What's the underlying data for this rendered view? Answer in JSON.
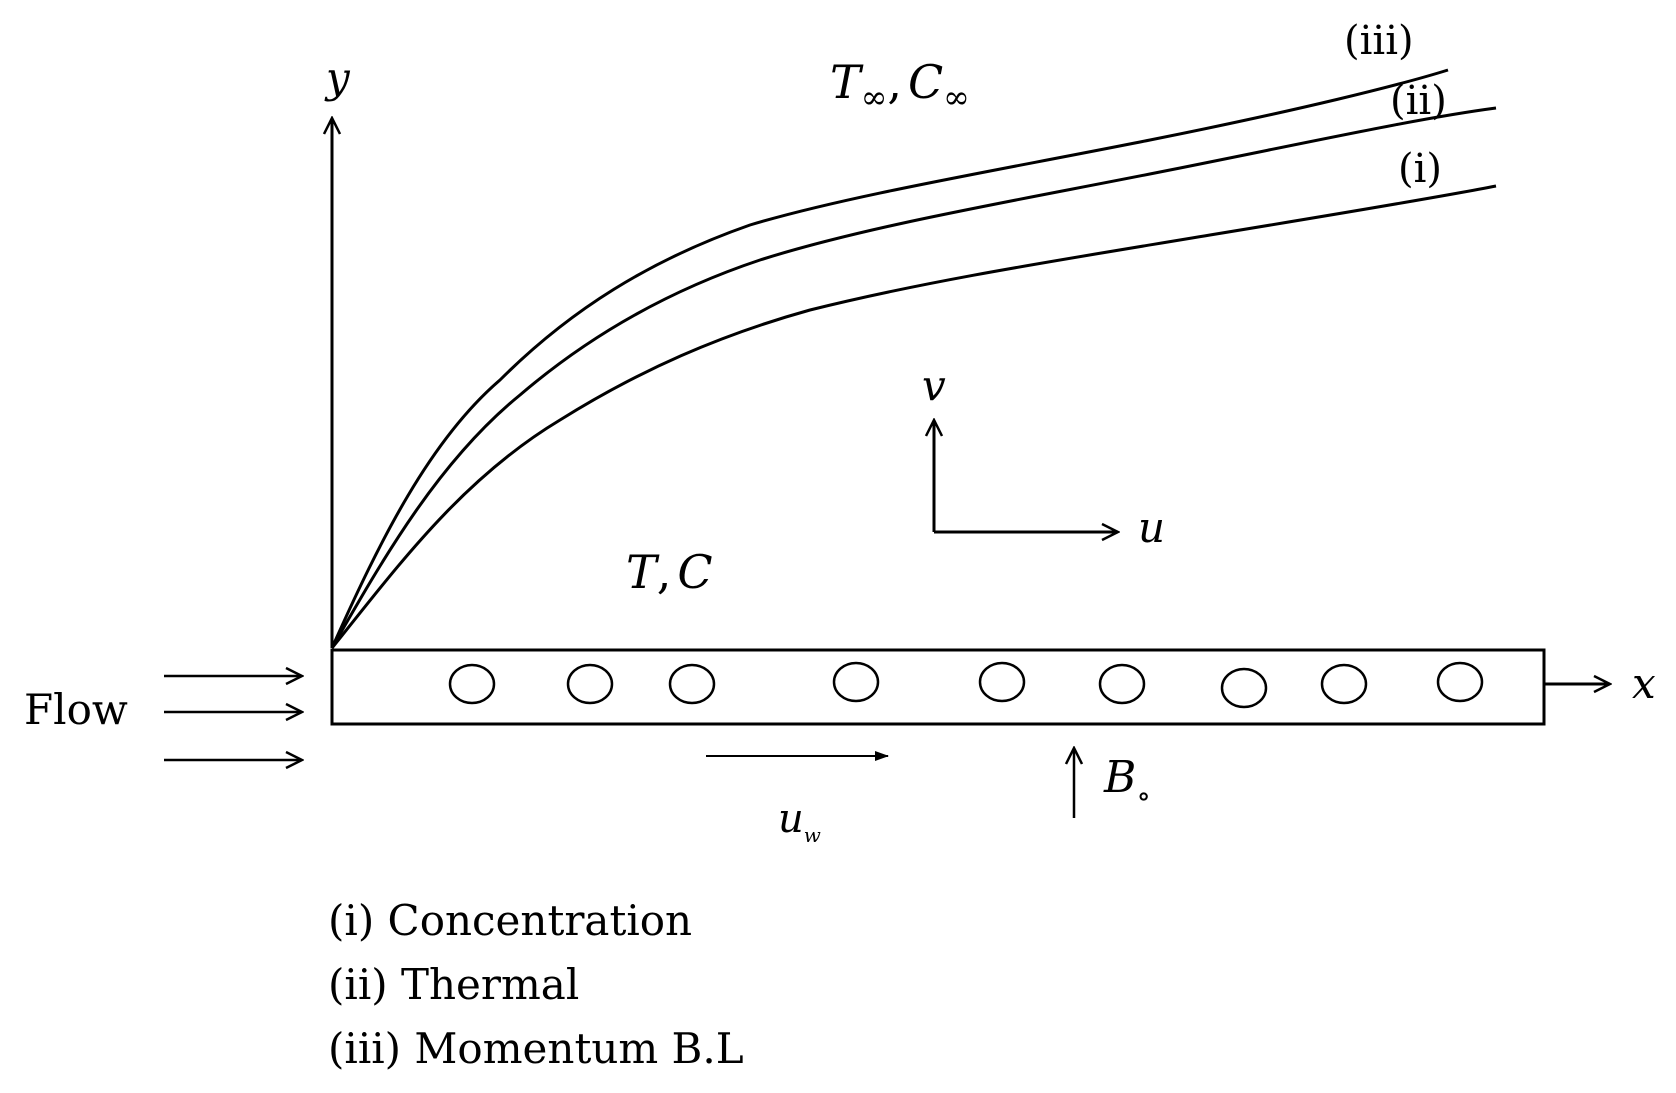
{
  "axes": {
    "y_label": "y",
    "x_label": "x"
  },
  "labels": {
    "ambient_T": "T",
    "ambient_C": "C",
    "ambient_subscript": "∞",
    "sep": ",",
    "wall_T": "T",
    "wall_C": "C",
    "v_label": "v",
    "u_label": "u",
    "flow_label": "Flow",
    "uw_main": "u",
    "uw_sub": "w",
    "b_main": "B",
    "b_sub": "∘"
  },
  "curves": {
    "iii": "(iii)",
    "ii": "(ii)",
    "i": "(i)"
  },
  "legend": {
    "item_i": "(i) Concentration",
    "item_ii": "(ii) Thermal",
    "item_iii": "(iii) Momentum B.L"
  }
}
